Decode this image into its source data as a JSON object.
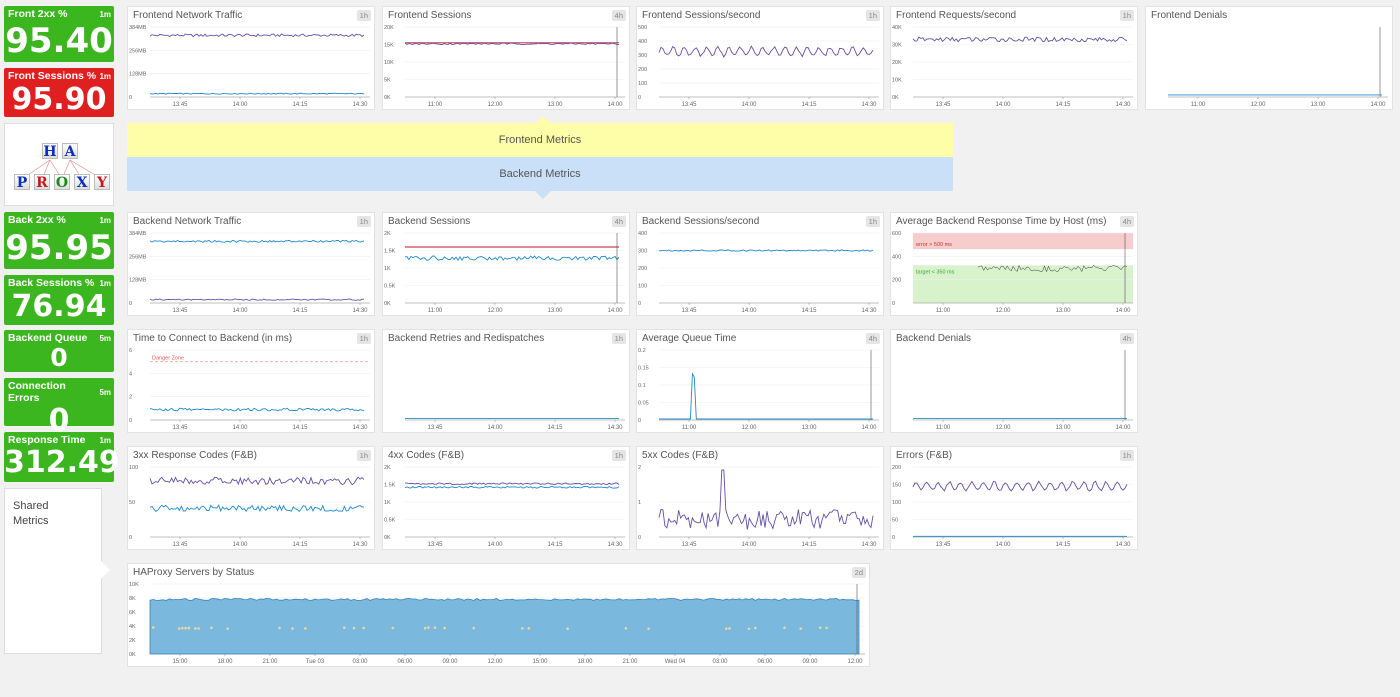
{
  "colors": {
    "green": "#3cb61f",
    "red": "#e02020",
    "purple": "#6450a8",
    "blue": "#1f8ac9",
    "crimson": "#c0102a"
  },
  "kpis": [
    {
      "id": "front-2xx",
      "label": "Front 2xx %",
      "interval": "1m",
      "value": "95.40",
      "status": "green"
    },
    {
      "id": "front-sessions",
      "label": "Front Sessions %",
      "interval": "1m",
      "value": "95.90",
      "status": "red"
    },
    {
      "id": "back-2xx",
      "label": "Back 2xx %",
      "interval": "1m",
      "value": "95.95",
      "status": "green"
    },
    {
      "id": "back-sessions",
      "label": "Back Sessions %",
      "interval": "1m",
      "value": "76.94",
      "status": "green"
    },
    {
      "id": "backend-queue",
      "label": "Backend Queue",
      "interval": "5m",
      "value": "0",
      "status": "green"
    },
    {
      "id": "connection-errors",
      "label": "Connection Errors",
      "interval": "5m",
      "value": "0",
      "status": "green"
    },
    {
      "id": "response-time",
      "label": "Response Time",
      "interval": "1m",
      "value": "312.49",
      "status": "green"
    }
  ],
  "logo": {
    "row1": [
      "H",
      "A"
    ],
    "row2": [
      "P",
      "R",
      "O",
      "X",
      "Y"
    ]
  },
  "bands": {
    "frontend": "Frontend Metrics",
    "backend": "Backend Metrics"
  },
  "shared_label": "Shared Metrics",
  "widgets": [
    {
      "id": "frontend-network-traffic",
      "title": "Frontend Network Traffic",
      "badge": "1h",
      "yticks": [
        "384MB",
        "256MB",
        "128MB",
        "0"
      ],
      "xticks": [
        "13:45",
        "14:00",
        "14:15",
        "14:30"
      ],
      "ymax": 420,
      "series": [
        {
          "color": "purple",
          "base": 370,
          "amp": 8,
          "kind": "noise"
        },
        {
          "color": "blue",
          "base": 20,
          "amp": 3,
          "kind": "noise"
        }
      ]
    },
    {
      "id": "frontend-sessions",
      "title": "Frontend Sessions",
      "badge": "4h",
      "yticks": [
        "20K",
        "15K",
        "10K",
        "5K",
        "0K"
      ],
      "xticks": [
        "11:00",
        "12:00",
        "13:00",
        "14:00"
      ],
      "ymax": 20000,
      "series": [
        {
          "color": "crimson",
          "base": 15500,
          "amp": 0,
          "kind": "flat"
        },
        {
          "color": "purple",
          "base": 15200,
          "amp": 200,
          "kind": "noise"
        }
      ],
      "marker": true
    },
    {
      "id": "frontend-sessions-per-second",
      "title": "Frontend Sessions/second",
      "badge": "1h",
      "yticks": [
        "500",
        "400",
        "300",
        "200",
        "100",
        "0"
      ],
      "xticks": [
        "13:45",
        "14:00",
        "14:15",
        "14:30"
      ],
      "ymax": 500,
      "series": [
        {
          "color": "purple",
          "base": 325,
          "amp": 30,
          "kind": "osc"
        }
      ]
    },
    {
      "id": "frontend-requests-per-second",
      "title": "Frontend Requests/second",
      "badge": "1h",
      "yticks": [
        "40K",
        "30K",
        "20K",
        "10K",
        "0K"
      ],
      "xticks": [
        "13:45",
        "14:00",
        "14:15",
        "14:30"
      ],
      "ymax": 45000,
      "series": [
        {
          "color": "purple",
          "base": 37000,
          "amp": 1500,
          "kind": "noise"
        }
      ]
    },
    {
      "id": "frontend-denials",
      "title": "Frontend Denials",
      "badge": "",
      "yticks": [],
      "xticks": [
        "11:00",
        "12:00",
        "13:00",
        "14:00"
      ],
      "ymax": 10,
      "series": [
        {
          "color": "blue",
          "base": 0.3,
          "amp": 0,
          "kind": "flat"
        }
      ],
      "marker": true
    },
    {
      "id": "backend-network-traffic",
      "title": "Backend Network Traffic",
      "badge": "1h",
      "yticks": [
        "384MB",
        "256MB",
        "128MB",
        "0"
      ],
      "xticks": [
        "13:45",
        "14:00",
        "14:15",
        "14:30"
      ],
      "ymax": 420,
      "series": [
        {
          "color": "blue",
          "base": 370,
          "amp": 6,
          "kind": "noise"
        },
        {
          "color": "purple",
          "base": 20,
          "amp": 4,
          "kind": "noise"
        }
      ]
    },
    {
      "id": "backend-sessions",
      "title": "Backend Sessions",
      "badge": "4h",
      "yticks": [
        "2K",
        "1.5K",
        "1K",
        "0.5K",
        "0K"
      ],
      "xticks": [
        "11:00",
        "12:00",
        "13:00",
        "14:00"
      ],
      "ymax": 2000,
      "series": [
        {
          "color": "crimson",
          "base": 1600,
          "amp": 0,
          "kind": "flat"
        },
        {
          "color": "blue",
          "base": 1280,
          "amp": 60,
          "kind": "noise"
        }
      ],
      "marker": true
    },
    {
      "id": "backend-sessions-per-second",
      "title": "Backend Sessions/second",
      "badge": "1h",
      "yticks": [
        "400",
        "300",
        "200",
        "100",
        "0"
      ],
      "xticks": [
        "13:45",
        "14:00",
        "14:15",
        "14:30"
      ],
      "ymax": 400,
      "series": [
        {
          "color": "blue",
          "base": 300,
          "amp": 4,
          "kind": "noise"
        }
      ]
    },
    {
      "id": "avg-backend-response-time",
      "title": "Average Backend Response Time by Host (ms)",
      "badge": "4h",
      "yticks": [
        "600",
        "400",
        "200",
        "0"
      ],
      "xticks": [
        "11:00",
        "12:00",
        "13:00",
        "14:00"
      ],
      "ymax": 650,
      "zones": {
        "error": "error > 500 ms",
        "target": "target < 350 ms"
      },
      "series": [
        {
          "color": "dark",
          "base": 320,
          "amp": 30,
          "kind": "noise",
          "from": 0.3
        }
      ],
      "marker": true
    },
    {
      "id": "time-to-connect",
      "title": "Time to Connect to Backend (in ms)",
      "badge": "1h",
      "yticks": [
        "6",
        "4",
        "2",
        "0"
      ],
      "xticks": [
        "13:45",
        "14:00",
        "14:15",
        "14:30"
      ],
      "ymax": 6,
      "danger": "Danger Zone",
      "series": [
        {
          "color": "blue",
          "base": 0.9,
          "amp": 0.12,
          "kind": "noise"
        }
      ]
    },
    {
      "id": "backend-retries",
      "title": "Backend Retries and Redispatches",
      "badge": "1h",
      "yticks": [],
      "xticks": [
        "13:45",
        "14:00",
        "14:15",
        "14:30"
      ],
      "ymax": 10,
      "series": [
        {
          "color": "blue",
          "base": 0.2,
          "amp": 0,
          "kind": "flat"
        }
      ]
    },
    {
      "id": "average-queue-time",
      "title": "Average Queue Time",
      "badge": "4h",
      "yticks": [
        "0.2",
        "0.15",
        "0.1",
        "0.05",
        "0"
      ],
      "xticks": [
        "11:00",
        "12:00",
        "13:00",
        "14:00"
      ],
      "ymax": 0.2,
      "series": [
        {
          "color": "blue",
          "base": 0.003,
          "amp": 0,
          "kind": "spike",
          "spikeAt": 0.16,
          "spikeVal": 0.165
        }
      ],
      "marker": true
    },
    {
      "id": "backend-denials",
      "title": "Backend Denials",
      "badge": "4h",
      "yticks": [],
      "xticks": [
        "11:00",
        "12:00",
        "13:00",
        "14:00"
      ],
      "ymax": 10,
      "series": [
        {
          "color": "blue",
          "base": 0.2,
          "amp": 0,
          "kind": "flat"
        }
      ],
      "marker": true
    },
    {
      "id": "3xx-response-codes",
      "title": "3xx Response Codes (F&B)",
      "badge": "1h",
      "yticks": [
        "100",
        "50",
        "0"
      ],
      "xticks": [
        "13:45",
        "14:00",
        "14:15",
        "14:30"
      ],
      "ymax": 110,
      "series": [
        {
          "color": "purple",
          "base": 88,
          "amp": 6,
          "kind": "noise"
        },
        {
          "color": "blue",
          "base": 45,
          "amp": 5,
          "kind": "noise"
        }
      ]
    },
    {
      "id": "4xx-codes",
      "title": "4xx Codes (F&B)",
      "badge": "1h",
      "yticks": [
        "2K",
        "1.5K",
        "1K",
        "0.5K",
        "0K"
      ],
      "xticks": [
        "13:45",
        "14:00",
        "14:15",
        "14:30"
      ],
      "ymax": 2000,
      "series": [
        {
          "color": "purple",
          "base": 1520,
          "amp": 25,
          "kind": "noise"
        },
        {
          "color": "blue",
          "base": 1420,
          "amp": 25,
          "kind": "noise"
        }
      ]
    },
    {
      "id": "5xx-codes",
      "title": "5xx Codes (F&B)",
      "badge": "",
      "yticks": [
        "2",
        "1",
        "0"
      ],
      "xticks": [
        "13:45",
        "14:00",
        "14:15",
        "14:30"
      ],
      "ymax": 2.4,
      "series": [
        {
          "color": "purple",
          "base": 0.6,
          "amp": 0.35,
          "kind": "noise",
          "spikeAt": 0.3,
          "spikeVal": 2.3
        }
      ]
    },
    {
      "id": "errors-fb",
      "title": "Errors (F&B)",
      "badge": "1h",
      "yticks": [
        "200",
        "150",
        "100",
        "50",
        "0"
      ],
      "xticks": [
        "13:45",
        "14:00",
        "14:15",
        "14:30"
      ],
      "ymax": 200,
      "series": [
        {
          "color": "purple",
          "base": 145,
          "amp": 12,
          "kind": "osc"
        },
        {
          "color": "blue",
          "base": 2,
          "amp": 0,
          "kind": "flat"
        }
      ]
    },
    {
      "id": "haproxy-servers-by-status",
      "title": "HAProxy Servers by Status",
      "badge": "2d",
      "yticks": [
        "10K",
        "8K",
        "6K",
        "4K",
        "2K",
        "0K"
      ],
      "xticks": [
        "15:00",
        "18:00",
        "21:00",
        "Tue 03",
        "03:00",
        "06:00",
        "09:00",
        "12:00",
        "15:00",
        "18:00",
        "21:00",
        "Wed 04",
        "03:00",
        "06:00",
        "09:00",
        "12:00"
      ],
      "ymax": 10000,
      "area": true,
      "series": [
        {
          "color": "blue",
          "base": 7800,
          "amp": 150,
          "kind": "noise"
        },
        {
          "color": "tan",
          "base": 3700,
          "amp": 200,
          "kind": "sparse"
        }
      ],
      "marker": true
    }
  ]
}
